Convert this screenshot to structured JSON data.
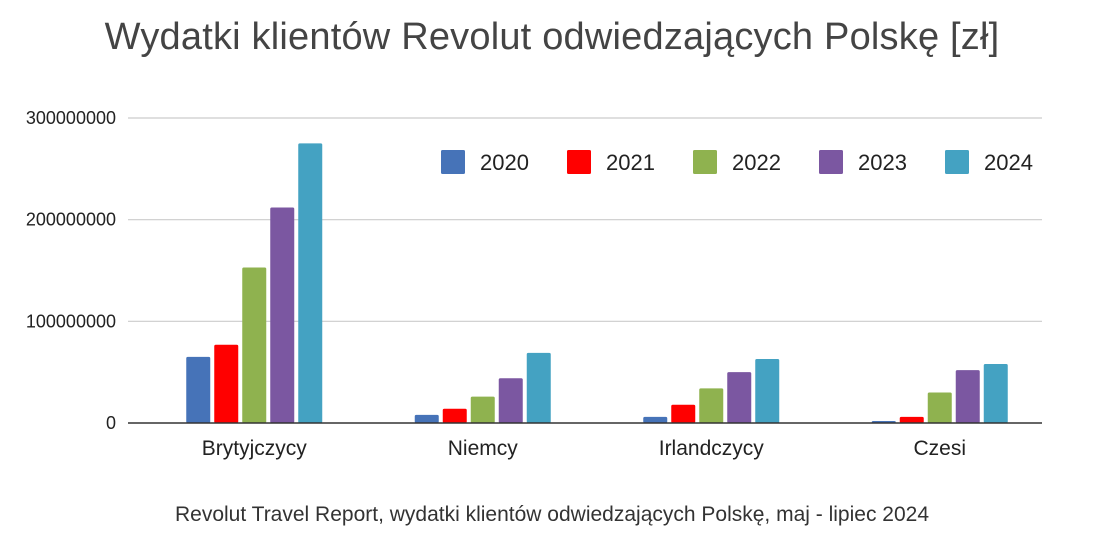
{
  "chart_data": {
    "type": "bar",
    "title": "Wydatki klientów Revolut odwiedzających Polskę [zł]",
    "subtitle": "Revolut Travel Report, wydatki klientów odwiedzających Polskę, maj - lipiec 2024",
    "xlabel": "",
    "ylabel": "",
    "ylim": [
      0,
      300000000
    ],
    "yticks": [
      0,
      100000000,
      200000000,
      300000000
    ],
    "ytick_labels": [
      "0",
      "100000000",
      "200000000",
      "300000000"
    ],
    "grid": true,
    "legend_position": "top-right",
    "categories": [
      "Brytyjczycy",
      "Niemcy",
      "Irlandczycy",
      "Czesi"
    ],
    "series": [
      {
        "name": "2020",
        "color": "#4673b8",
        "values": [
          65000000,
          8000000,
          6000000,
          2000000
        ]
      },
      {
        "name": "2021",
        "color": "#ff0000",
        "values": [
          77000000,
          14000000,
          18000000,
          6000000
        ]
      },
      {
        "name": "2022",
        "color": "#8fb24f",
        "values": [
          153000000,
          26000000,
          34000000,
          30000000
        ]
      },
      {
        "name": "2023",
        "color": "#7b57a1",
        "values": [
          212000000,
          44000000,
          50000000,
          52000000
        ]
      },
      {
        "name": "2024",
        "color": "#44a2c2",
        "values": [
          275000000,
          69000000,
          63000000,
          58000000
        ]
      }
    ]
  }
}
